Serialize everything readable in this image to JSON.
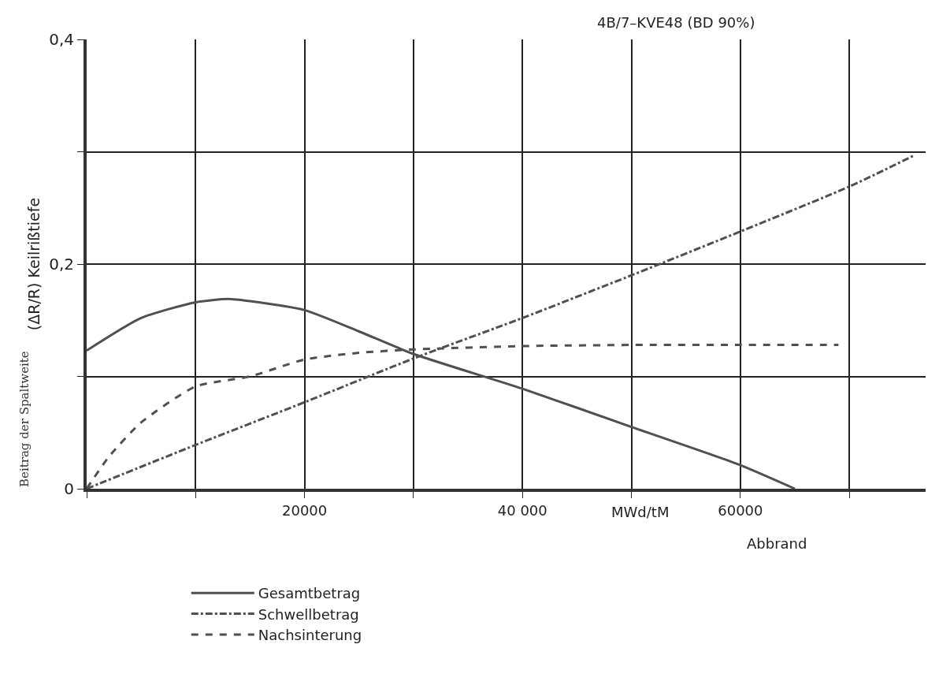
{
  "chart_data": {
    "type": "line",
    "title": "4B/7–KVE48 (BD 90%)",
    "xlabel": "Abbrand",
    "ylabel": "(ΔR/R) Keilrißtiefe",
    "annotations": [
      "MWd/tM",
      "Beitrag der Spaltweite"
    ],
    "series": [
      {
        "name": "Gesamtbetrag",
        "color": "#505050",
        "line_style": "solid",
        "x": [
          0,
          5000,
          10000,
          13000,
          15000,
          20000,
          25000,
          30000,
          40000,
          50000,
          60000,
          65000
        ],
        "values": [
          0.123,
          0.152,
          0.166,
          0.169,
          0.167,
          0.159,
          0.14,
          0.12,
          0.089,
          0.055,
          0.021,
          0
        ]
      },
      {
        "name": "Schwellbetrag",
        "color": "#505050",
        "line_style": "dashdot",
        "x": [
          0,
          10000,
          20000,
          30000,
          40000,
          50000,
          60000,
          70000,
          76000
        ],
        "values": [
          0,
          0.039,
          0.077,
          0.116,
          0.152,
          0.19,
          0.229,
          0.269,
          0.297
        ]
      },
      {
        "name": "Nachsinterung",
        "color": "#505050",
        "line_style": "dashed",
        "x": [
          0,
          2000,
          5000,
          10000,
          15000,
          20000,
          25000,
          30000,
          40000,
          50000,
          60000,
          69000
        ],
        "values": [
          0,
          0.028,
          0.059,
          0.091,
          0.1,
          0.115,
          0.121,
          0.124,
          0.127,
          0.128,
          0.128,
          0.128
        ]
      }
    ],
    "xlim": [
      0,
      77000
    ],
    "xticks": [
      {
        "value": 0,
        "label": null
      },
      {
        "value": 10000,
        "label": null
      },
      {
        "value": 20000,
        "label": "20000"
      },
      {
        "value": 30000,
        "label": null
      },
      {
        "value": 40000,
        "label": "40 000"
      },
      {
        "value": 50000,
        "label": null
      },
      {
        "value": 60000,
        "label": "60000"
      },
      {
        "value": 70000,
        "label": null
      }
    ],
    "ylim": [
      0,
      0.4
    ],
    "yticks": [
      {
        "value": 0,
        "label": "0"
      },
      {
        "value": 0.1,
        "label": null
      },
      {
        "value": 0.2,
        "label": "0,2"
      },
      {
        "value": 0.3,
        "label": null
      },
      {
        "value": 0.4,
        "label": "0,4"
      }
    ],
    "grid": true,
    "legend": "bottom"
  }
}
